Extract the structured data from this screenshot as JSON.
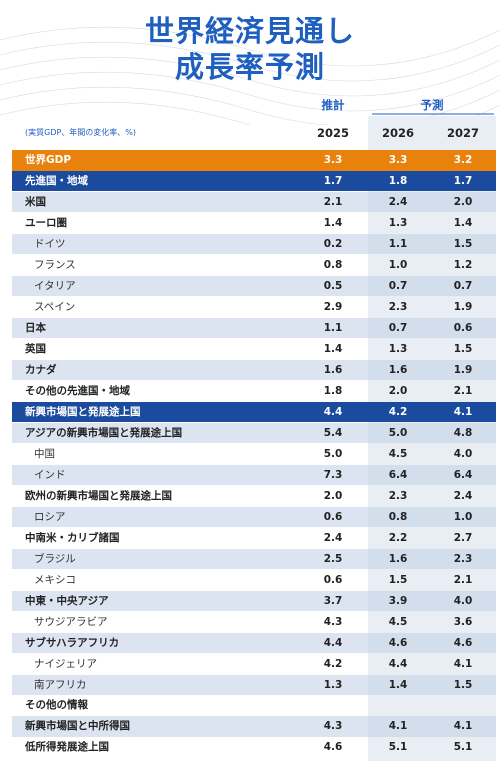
{
  "title": [
    "世界経済見通し",
    "成長率予測"
  ],
  "header": {
    "estimate": "推計",
    "forecast": "予測",
    "note": "(実質GDP、年間の変化率、%)",
    "years": [
      "2025",
      "2026",
      "2027"
    ]
  },
  "table": {
    "rows": [
      [
        "世界GDP",
        "3.3",
        "3.3",
        "3.2"
      ],
      [
        "先進国・地域",
        "1.7",
        "1.8",
        "1.7"
      ],
      [
        "米国",
        "2.1",
        "2.4",
        "2.0"
      ],
      [
        "ユーロ圏",
        "1.4",
        "1.3",
        "1.4"
      ],
      [
        "ドイツ",
        "0.2",
        "1.1",
        "1.5"
      ],
      [
        "フランス",
        "0.8",
        "1.0",
        "1.2"
      ],
      [
        "イタリア",
        "0.5",
        "0.7",
        "0.7"
      ],
      [
        "スペイン",
        "2.9",
        "2.3",
        "1.9"
      ],
      [
        "日本",
        "1.1",
        "0.7",
        "0.6"
      ],
      [
        "英国",
        "1.4",
        "1.3",
        "1.5"
      ],
      [
        "カナダ",
        "1.6",
        "1.6",
        "1.9"
      ],
      [
        "その他の先進国・地域",
        "1.8",
        "2.0",
        "2.1"
      ],
      [
        "新興市場国と発展途上国",
        "4.4",
        "4.2",
        "4.1"
      ],
      [
        "アジアの新興市場国と発展途上国",
        "5.4",
        "5.0",
        "4.8"
      ],
      [
        "中国",
        "5.0",
        "4.5",
        "4.0"
      ],
      [
        "インド",
        "7.3",
        "6.4",
        "6.4"
      ],
      [
        "欧州の新興市場国と発展途上国",
        "2.0",
        "2.3",
        "2.4"
      ],
      [
        "ロシア",
        "0.6",
        "0.8",
        "1.0"
      ],
      [
        "中南米・カリブ諸国",
        "2.4",
        "2.2",
        "2.7"
      ],
      [
        "ブラジル",
        "2.5",
        "1.6",
        "2.3"
      ],
      [
        "メキシコ",
        "0.6",
        "1.5",
        "2.1"
      ],
      [
        "中東・中央アジア",
        "3.7",
        "3.9",
        "4.0"
      ],
      [
        "サウジアラビア",
        "4.3",
        "4.5",
        "3.6"
      ],
      [
        "サブサハラアフリカ",
        "4.4",
        "4.6",
        "4.6"
      ],
      [
        "ナイジェリア",
        "4.2",
        "4.4",
        "4.1"
      ],
      [
        "南アフリカ",
        "1.3",
        "1.4",
        "1.5"
      ],
      [
        "その他の情報"
      ],
      [
        "新興市場国と中所得国",
        "4.3",
        "4.1",
        "4.1"
      ],
      [
        "低所得発展途上国",
        "4.6",
        "5.1",
        "5.1"
      ]
    ]
  }
}
